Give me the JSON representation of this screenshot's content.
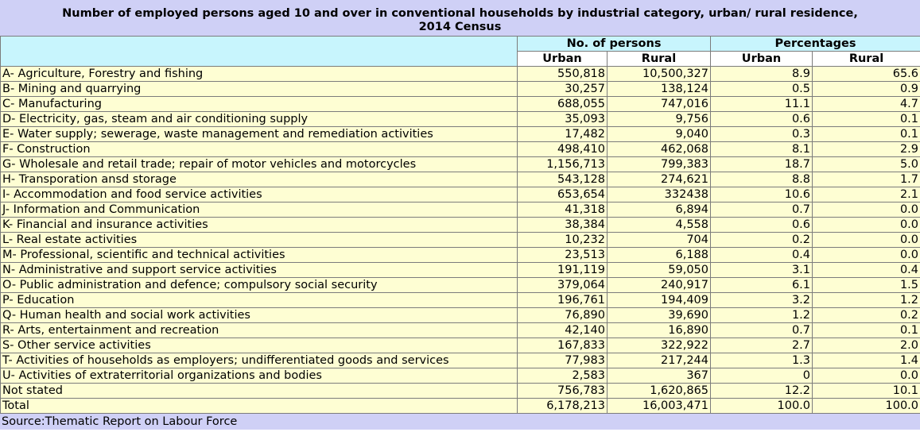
{
  "title_line1": "Number of employed persons aged 10 and over in conventional households by industrial category, urban/ rural residence,",
  "title_line2": "2014 Census",
  "header": {
    "group_persons": "No. of persons",
    "group_percentages": "Percentages",
    "urban": "Urban",
    "rural": "Rural"
  },
  "rows": [
    {
      "label": "A- Agriculture, Forestry and fishing",
      "urban": "550,818",
      "rural": "10,500,327",
      "urban_pct": "8.9",
      "rural_pct": "65.6"
    },
    {
      "label": "B- Mining and quarrying",
      "urban": "30,257",
      "rural": "138,124",
      "urban_pct": "0.5",
      "rural_pct": "0.9"
    },
    {
      "label": "C- Manufacturing",
      "urban": "688,055",
      "rural": "747,016",
      "urban_pct": "11.1",
      "rural_pct": "4.7"
    },
    {
      "label": "D- Electricity, gas, steam and air conditioning supply",
      "urban": "35,093",
      "rural": "9,756",
      "urban_pct": "0.6",
      "rural_pct": "0.1"
    },
    {
      "label": "E- Water supply; sewerage, waste management and remediation activities",
      "urban": "17,482",
      "rural": "9,040",
      "urban_pct": "0.3",
      "rural_pct": "0.1"
    },
    {
      "label": "F- Construction",
      "urban": "498,410",
      "rural": "462,068",
      "urban_pct": "8.1",
      "rural_pct": "2.9"
    },
    {
      "label": "G- Wholesale and retail trade; repair of motor vehicles and motorcycles",
      "urban": "1,156,713",
      "rural": "799,383",
      "urban_pct": "18.7",
      "rural_pct": "5.0"
    },
    {
      "label": "H- Transporation ansd storage",
      "urban": "543,128",
      "rural": "274,621",
      "urban_pct": "8.8",
      "rural_pct": "1.7"
    },
    {
      "label": "I- Accommodation and food service activities",
      "urban": "653,654",
      "rural": "332438",
      "urban_pct": "10.6",
      "rural_pct": "2.1"
    },
    {
      "label": "J- Information and Communication",
      "urban": "41,318",
      "rural": "6,894",
      "urban_pct": "0.7",
      "rural_pct": "0.0"
    },
    {
      "label": "K- Financial and insurance activities",
      "urban": "38,384",
      "rural": "4,558",
      "urban_pct": "0.6",
      "rural_pct": "0.0"
    },
    {
      "label": "L- Real estate activities",
      "urban": "10,232",
      "rural": "704",
      "urban_pct": "0.2",
      "rural_pct": "0.0"
    },
    {
      "label": "M- Professional, scientific and technical activities",
      "urban": "23,513",
      "rural": "6,188",
      "urban_pct": "0.4",
      "rural_pct": "0.0"
    },
    {
      "label": "N- Administrative and support service activities",
      "urban": "191,119",
      "rural": "59,050",
      "urban_pct": "3.1",
      "rural_pct": "0.4"
    },
    {
      "label": "O- Public administration and defence; compulsory social security",
      "urban": "379,064",
      "rural": "240,917",
      "urban_pct": "6.1",
      "rural_pct": "1.5"
    },
    {
      "label": "P- Education",
      "urban": "196,761",
      "rural": "194,409",
      "urban_pct": "3.2",
      "rural_pct": "1.2"
    },
    {
      "label": "Q- Human health and social work activities",
      "urban": "76,890",
      "rural": "39,690",
      "urban_pct": "1.2",
      "rural_pct": "0.2"
    },
    {
      "label": "R- Arts, entertainment and recreation",
      "urban": "42,140",
      "rural": "16,890",
      "urban_pct": "0.7",
      "rural_pct": "0.1"
    },
    {
      "label": "S- Other service activities",
      "urban": "167,833",
      "rural": "322,922",
      "urban_pct": "2.7",
      "rural_pct": "2.0"
    },
    {
      "label": "T- Activities of households as employers; undifferentiated goods and services",
      "urban": "77,983",
      "rural": "217,244",
      "urban_pct": "1.3",
      "rural_pct": "1.4"
    },
    {
      "label": "U- Activities of extraterritorial organizations and bodies",
      "urban": "2,583",
      "rural": "367",
      "urban_pct": "0",
      "rural_pct": "0.0"
    },
    {
      "label": "Not stated",
      "urban": "756,783",
      "rural": "1,620,865",
      "urban_pct": "12.2",
      "rural_pct": "10.1"
    },
    {
      "label": "Total",
      "urban": "6,178,213",
      "rural": "16,003,471",
      "urban_pct": "100.0",
      "rural_pct": "100.0"
    }
  ],
  "source": "Source:Thematic Report on Labour Force",
  "colors": {
    "title_bg": "#cfd0f6",
    "header_bg": "#c8f5fd",
    "row_bg": "#fefed3"
  }
}
